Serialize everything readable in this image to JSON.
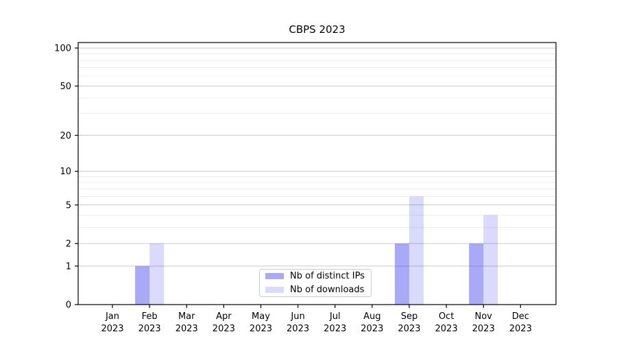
{
  "chart_data": {
    "type": "bar",
    "title": "CBPS 2023",
    "categories": [
      "Jan 2023",
      "Feb 2023",
      "Mar 2023",
      "Apr 2023",
      "May 2023",
      "Jun 2023",
      "Jul 2023",
      "Aug 2023",
      "Sep 2023",
      "Oct 2023",
      "Nov 2023",
      "Dec 2023"
    ],
    "series": [
      {
        "name": "Nb of distinct IPs",
        "color": "rgba(10,10,235,0.35)",
        "values": [
          0,
          1,
          0,
          0,
          0,
          0,
          0,
          0,
          2,
          0,
          2,
          0
        ]
      },
      {
        "name": "Nb of downloads",
        "color": "rgba(10,10,235,0.15)",
        "values": [
          0,
          2,
          0,
          0,
          0,
          0,
          0,
          0,
          6,
          0,
          4,
          0
        ]
      }
    ],
    "yscale": "log1p",
    "ylim": [
      0,
      111
    ],
    "yticks": [
      0,
      1,
      2,
      5,
      10,
      20,
      50,
      100
    ],
    "yticks_minor": [
      3,
      4,
      6,
      7,
      8,
      9,
      30,
      40,
      60,
      70,
      80,
      90
    ],
    "grid": {
      "which": "both",
      "major_color": "#c8c8c8",
      "minor_color": "#ececec"
    },
    "axis_color": "#000000",
    "tick_label_color": "#000000",
    "legend_position": "lower center"
  }
}
